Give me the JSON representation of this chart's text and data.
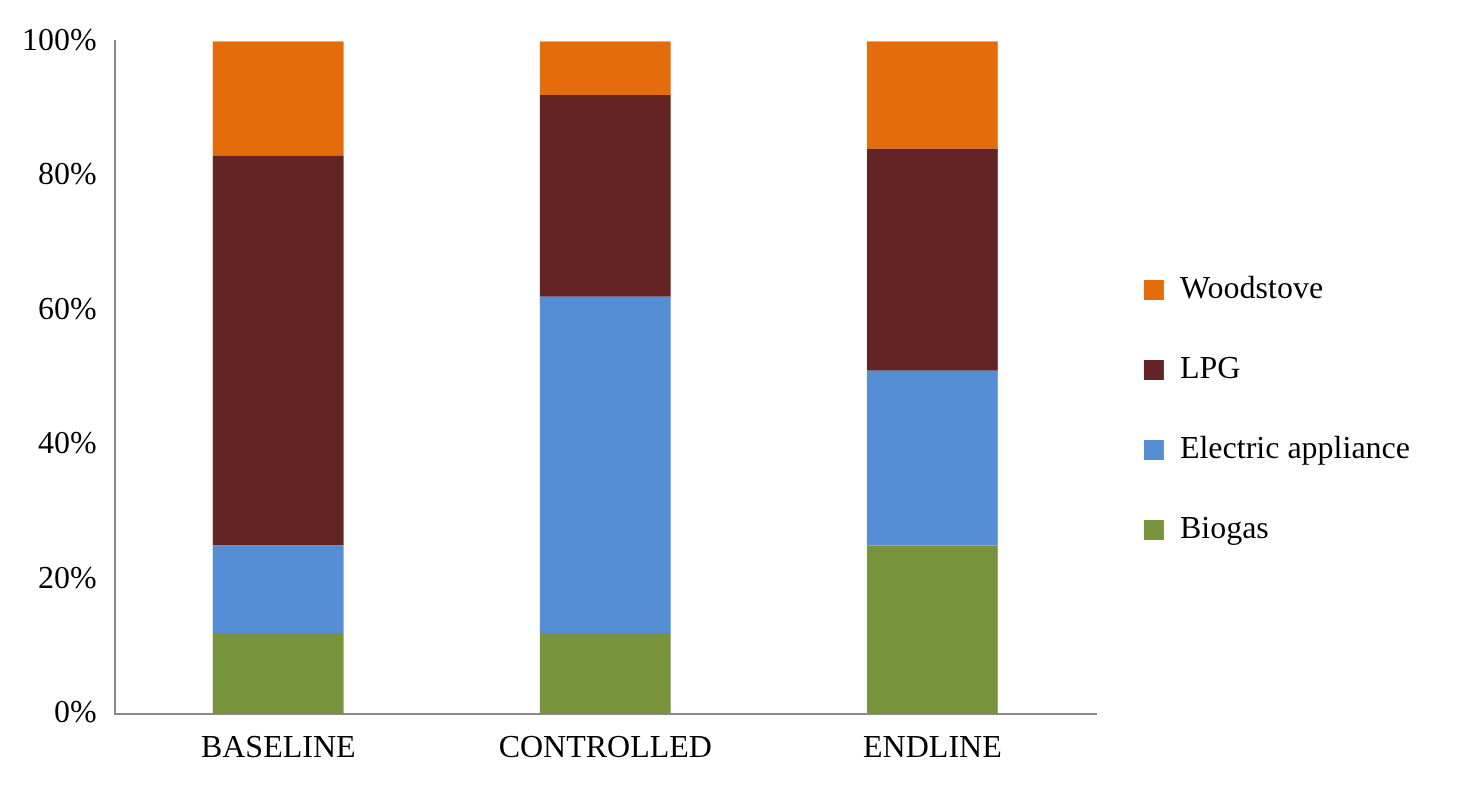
{
  "chart_data": {
    "type": "bar",
    "stacked": true,
    "categories": [
      "BASELINE",
      "CONTROLLED",
      "ENDLINE"
    ],
    "series": [
      {
        "name": "Biogas",
        "color": "#77933c",
        "values": [
          12,
          12,
          25
        ]
      },
      {
        "name": "Electric appliance",
        "color": "#558ed5",
        "values": [
          13,
          50,
          26
        ]
      },
      {
        "name": "LPG",
        "color": "#632523",
        "values": [
          58,
          30,
          33
        ]
      },
      {
        "name": "Woodstove",
        "color": "#e46c0a",
        "values": [
          17,
          8,
          16
        ]
      }
    ],
    "ylim": [
      0,
      100
    ],
    "yticks": [
      {
        "value": 0,
        "label": "0%"
      },
      {
        "value": 20,
        "label": "20%"
      },
      {
        "value": 40,
        "label": "40%"
      },
      {
        "value": 60,
        "label": "60%"
      },
      {
        "value": 80,
        "label": "80%"
      },
      {
        "value": 100,
        "label": "100%"
      }
    ],
    "grid": false,
    "legend": "right"
  }
}
